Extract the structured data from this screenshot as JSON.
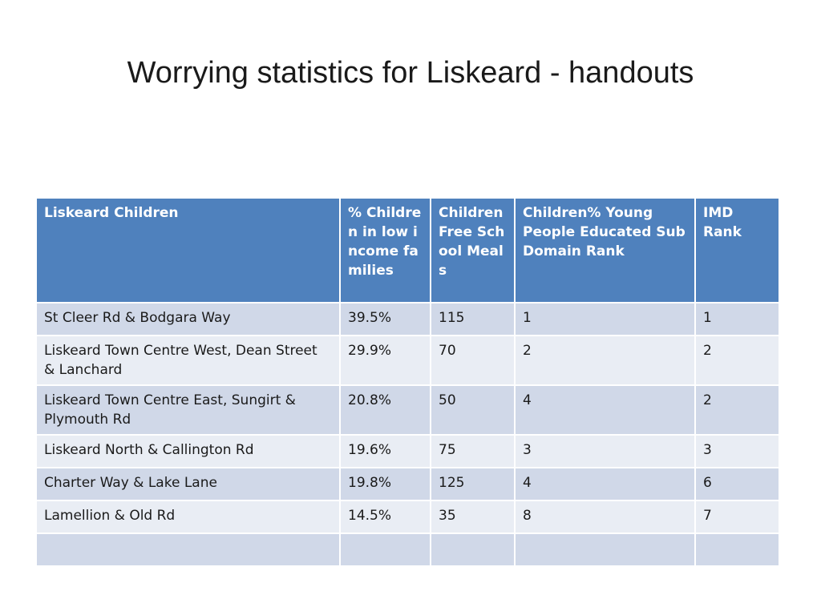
{
  "title": "Worrying statistics for Liskeard - handouts",
  "table": {
    "headers": [
      "Liskeard Children",
      "% Children in low income families",
      "Children Free School Meals",
      "Children% Young People Educated Sub Domain Rank",
      "IMD Rank"
    ],
    "rows": [
      [
        "St Cleer Rd & Bodgara Way",
        "39.5%",
        "115",
        "1",
        "1"
      ],
      [
        "Liskeard Town Centre West, Dean Street & Lanchard",
        "29.9%",
        "70",
        "2",
        "2"
      ],
      [
        "Liskeard Town Centre East, Sungirt & Plymouth Rd",
        "20.8%",
        "50",
        "4",
        "2"
      ],
      [
        "Liskeard North & Callington Rd",
        "19.6%",
        "75",
        "3",
        "3"
      ],
      [
        "Charter Way & Lake Lane",
        "19.8%",
        "125",
        "4",
        "6"
      ],
      [
        "Lamellion & Old Rd",
        "14.5%",
        "35",
        "8",
        "7"
      ]
    ]
  }
}
